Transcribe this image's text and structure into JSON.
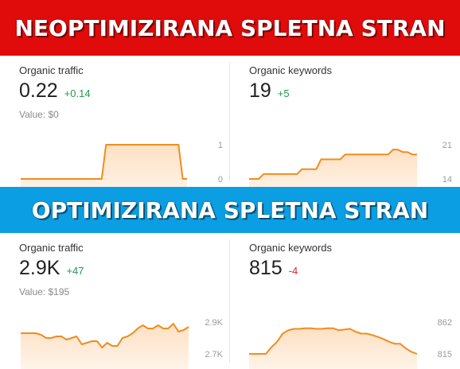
{
  "top_banner": {
    "text": "NEOPTIMIZIRANA SPLETNA STRAN",
    "color": "#e00b0b"
  },
  "bottom_banner": {
    "text": "OPTIMIZIRANA SPLETNA STRAN",
    "color": "#0c9ee3"
  },
  "colors": {
    "line": "#f28c1e",
    "fill_top": "#fde0c2",
    "fill_bottom": "#fff8f1",
    "positive": "#1e9b4a",
    "negative": "#e3242b"
  },
  "unoptimized": {
    "traffic": {
      "title": "Organic traffic",
      "value": "0.22",
      "delta": "+0.14",
      "delta_sign": "pos",
      "value_label": "Value: $0",
      "chart_data": {
        "type": "area",
        "y_ticks": [
          "1",
          "0"
        ],
        "ylim": [
          0,
          1
        ],
        "values": [
          0,
          0,
          0,
          0,
          0,
          0,
          0,
          0,
          0,
          0,
          0,
          0,
          0,
          0,
          0,
          0,
          0,
          0,
          0,
          0,
          1,
          1,
          1,
          1,
          1,
          1,
          1,
          1,
          1,
          1,
          1,
          1,
          1,
          1,
          1,
          1,
          1,
          1,
          0,
          0
        ]
      }
    },
    "keywords": {
      "title": "Organic keywords",
      "value": "19",
      "delta": "+5",
      "delta_sign": "pos",
      "chart_data": {
        "type": "area",
        "y_ticks": [
          "21",
          "14"
        ],
        "ylim": [
          14,
          21
        ],
        "values": [
          14,
          14,
          14,
          15,
          15,
          15,
          15,
          15,
          15,
          15,
          15,
          16,
          16,
          16,
          16,
          18,
          18,
          18,
          18,
          18,
          19,
          19,
          19,
          19,
          19,
          19,
          19,
          19,
          19,
          19,
          20,
          20,
          19.5,
          19.5,
          19,
          19
        ]
      }
    }
  },
  "optimized": {
    "traffic": {
      "title": "Organic traffic",
      "value": "2.9K",
      "delta": "+47",
      "delta_sign": "pos",
      "value_label": "Value: $195",
      "chart_data": {
        "type": "area",
        "y_ticks": [
          "2.9K",
          "2.7K"
        ],
        "ylim": [
          2.7,
          2.9
        ],
        "values": [
          2.83,
          2.83,
          2.83,
          2.83,
          2.82,
          2.8,
          2.8,
          2.81,
          2.81,
          2.79,
          2.8,
          2.81,
          2.76,
          2.77,
          2.78,
          2.78,
          2.74,
          2.77,
          2.75,
          2.75,
          2.8,
          2.81,
          2.83,
          2.86,
          2.88,
          2.86,
          2.86,
          2.88,
          2.86,
          2.86,
          2.89,
          2.84,
          2.85,
          2.87
        ]
      }
    },
    "keywords": {
      "title": "Organic keywords",
      "value": "815",
      "delta": "-4",
      "delta_sign": "neg",
      "chart_data": {
        "type": "area",
        "y_ticks": [
          "862",
          "815"
        ],
        "ylim": [
          815,
          862
        ],
        "values": [
          815,
          815,
          815,
          815,
          825,
          833,
          845,
          850,
          852,
          852,
          853,
          853,
          852,
          852,
          853,
          853,
          850,
          851,
          852,
          848,
          845,
          845,
          843,
          840,
          837,
          833,
          830,
          830,
          823,
          818,
          815
        ]
      }
    }
  }
}
